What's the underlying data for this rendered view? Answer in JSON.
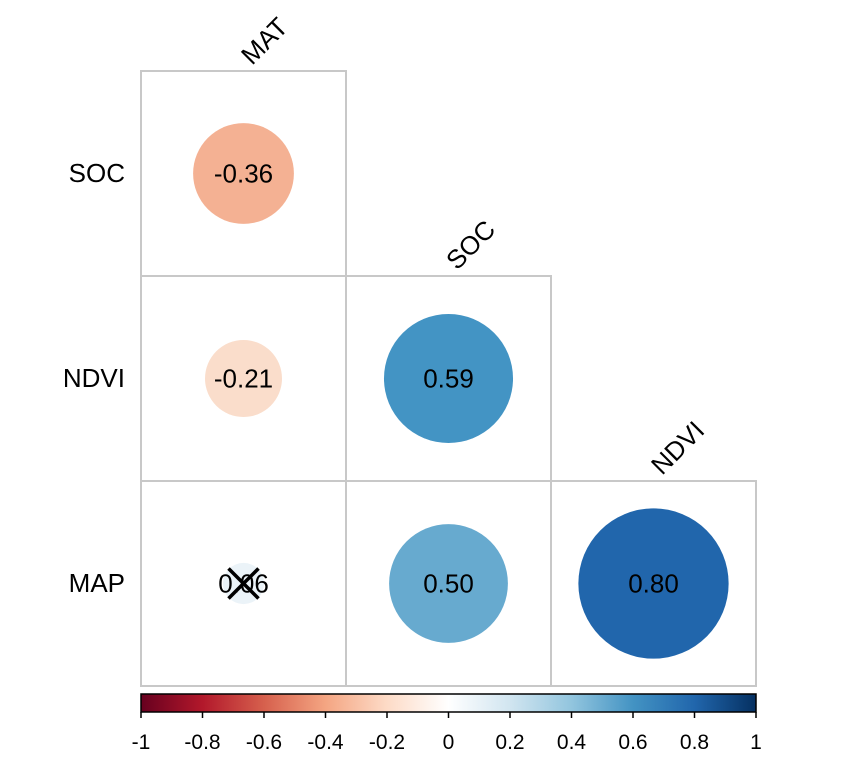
{
  "chart_data": {
    "type": "heatmap",
    "subtype": "correlation-circle-lower-triangle",
    "row_labels": [
      "SOC",
      "NDVI",
      "MAP"
    ],
    "col_labels": [
      "MAT",
      "SOC",
      "NDVI"
    ],
    "cells": [
      {
        "row": "SOC",
        "col": "MAT",
        "value": -0.36,
        "label": "-0.36",
        "color": "#F4B193",
        "crossed": false
      },
      {
        "row": "NDVI",
        "col": "MAT",
        "value": -0.21,
        "label": "-0.21",
        "color": "#FADDCB",
        "crossed": false
      },
      {
        "row": "NDVI",
        "col": "SOC",
        "value": 0.59,
        "label": "0.59",
        "color": "#4394C4",
        "crossed": false
      },
      {
        "row": "MAP",
        "col": "MAT",
        "value": 0.06,
        "label": "0.06",
        "color": "#EBF3F8",
        "crossed": true
      },
      {
        "row": "MAP",
        "col": "SOC",
        "value": 0.5,
        "label": "0.50",
        "color": "#67AACF",
        "crossed": false
      },
      {
        "row": "MAP",
        "col": "NDVI",
        "value": 0.8,
        "label": "0.80",
        "color": "#2166AC",
        "crossed": false
      }
    ],
    "colorbar": {
      "range": [
        -1,
        1
      ],
      "ticks": [
        "-1",
        "-0.8",
        "-0.6",
        "-0.4",
        "-0.2",
        "0",
        "0.2",
        "0.4",
        "0.6",
        "0.8",
        "1"
      ],
      "tick_values": [
        -1,
        -0.8,
        -0.6,
        -0.4,
        -0.2,
        0,
        0.2,
        0.4,
        0.6,
        0.8,
        1
      ],
      "colors": [
        "#67001F",
        "#B2182B",
        "#D6604D",
        "#F4A582",
        "#FDDBC7",
        "#FFFFFF",
        "#D1E5F0",
        "#92C5DE",
        "#4393C3",
        "#2166AC",
        "#053061"
      ],
      "placement": "bottom"
    },
    "grid_color": "#C8C8C8"
  }
}
